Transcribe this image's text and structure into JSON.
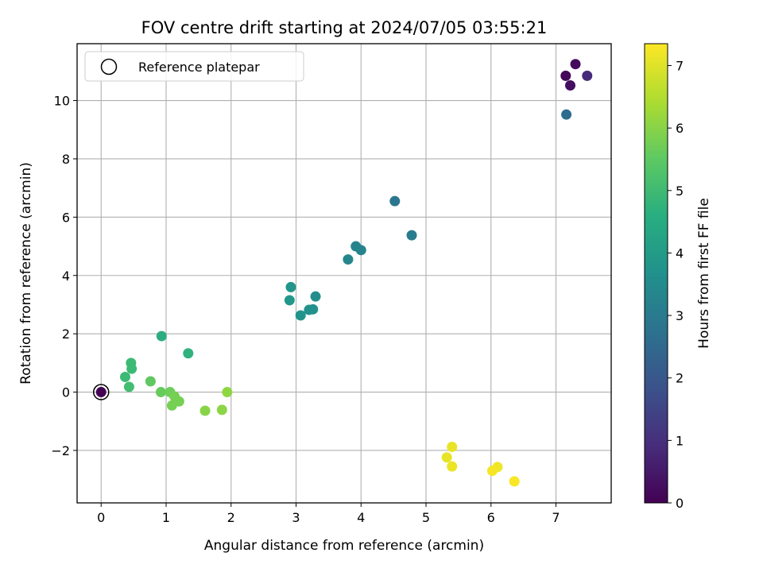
{
  "chart_data": {
    "type": "scatter",
    "title": "FOV centre drift starting at 2024/07/05 03:55:21",
    "xlabel": "Angular distance from reference (arcmin)",
    "ylabel": "Rotation from reference (arcmin)",
    "xlim": [
      -0.37,
      7.85
    ],
    "ylim": [
      -3.8,
      11.95
    ],
    "xticks": [
      0,
      1,
      2,
      3,
      4,
      5,
      6,
      7
    ],
    "yticks": [
      -2,
      0,
      2,
      4,
      6,
      8,
      10
    ],
    "grid": true,
    "legend": {
      "placement": "top-left",
      "entries": [
        "Reference platepar"
      ]
    },
    "colorbar": {
      "label": "Hours from first FF file",
      "range": [
        0,
        7.35
      ],
      "ticks": [
        0,
        1,
        2,
        3,
        4,
        5,
        6,
        7
      ],
      "colormap": "viridis"
    },
    "reference_point": {
      "x": 0,
      "y": 0
    },
    "points": [
      {
        "x": 7.15,
        "y": 10.85,
        "h": 0.1
      },
      {
        "x": 7.3,
        "y": 11.25,
        "h": 0.2
      },
      {
        "x": 7.22,
        "y": 10.52,
        "h": 0.3
      },
      {
        "x": 7.48,
        "y": 10.85,
        "h": 0.9
      },
      {
        "x": 7.16,
        "y": 9.52,
        "h": 2.6
      },
      {
        "x": 4.52,
        "y": 6.55,
        "h": 2.9
      },
      {
        "x": 4.78,
        "y": 5.38,
        "h": 3.05
      },
      {
        "x": 3.92,
        "y": 5.0,
        "h": 3.3
      },
      {
        "x": 4.0,
        "y": 4.87,
        "h": 3.3
      },
      {
        "x": 3.8,
        "y": 4.55,
        "h": 3.4
      },
      {
        "x": 3.3,
        "y": 3.28,
        "h": 3.6
      },
      {
        "x": 3.2,
        "y": 2.82,
        "h": 3.7
      },
      {
        "x": 3.26,
        "y": 2.84,
        "h": 3.7
      },
      {
        "x": 3.07,
        "y": 2.63,
        "h": 3.75
      },
      {
        "x": 2.92,
        "y": 3.6,
        "h": 3.85
      },
      {
        "x": 2.9,
        "y": 3.15,
        "h": 3.9
      },
      {
        "x": 0.93,
        "y": 1.92,
        "h": 4.55
      },
      {
        "x": 1.34,
        "y": 1.33,
        "h": 4.7
      },
      {
        "x": 0.46,
        "y": 1.0,
        "h": 5.0
      },
      {
        "x": 0.47,
        "y": 0.8,
        "h": 5.0
      },
      {
        "x": 0.37,
        "y": 0.52,
        "h": 5.0
      },
      {
        "x": 0.43,
        "y": 0.18,
        "h": 5.1
      },
      {
        "x": 0.76,
        "y": 0.37,
        "h": 5.5
      },
      {
        "x": 0.92,
        "y": 0.0,
        "h": 5.6
      },
      {
        "x": 1.06,
        "y": 0.0,
        "h": 5.7
      },
      {
        "x": 1.13,
        "y": -0.15,
        "h": 5.8
      },
      {
        "x": 1.2,
        "y": -0.32,
        "h": 5.8
      },
      {
        "x": 1.09,
        "y": -0.46,
        "h": 5.8
      },
      {
        "x": 1.6,
        "y": -0.64,
        "h": 6.0
      },
      {
        "x": 1.86,
        "y": -0.61,
        "h": 6.05
      },
      {
        "x": 1.94,
        "y": 0.0,
        "h": 6.1
      },
      {
        "x": 5.4,
        "y": -1.88,
        "h": 7.1
      },
      {
        "x": 5.32,
        "y": -2.24,
        "h": 7.1
      },
      {
        "x": 5.4,
        "y": -2.55,
        "h": 7.15
      },
      {
        "x": 6.1,
        "y": -2.57,
        "h": 7.2
      },
      {
        "x": 6.02,
        "y": -2.7,
        "h": 7.25
      },
      {
        "x": 6.36,
        "y": -3.06,
        "h": 7.3
      },
      {
        "x": 0.0,
        "y": 0.0,
        "h": 0.0
      }
    ]
  }
}
